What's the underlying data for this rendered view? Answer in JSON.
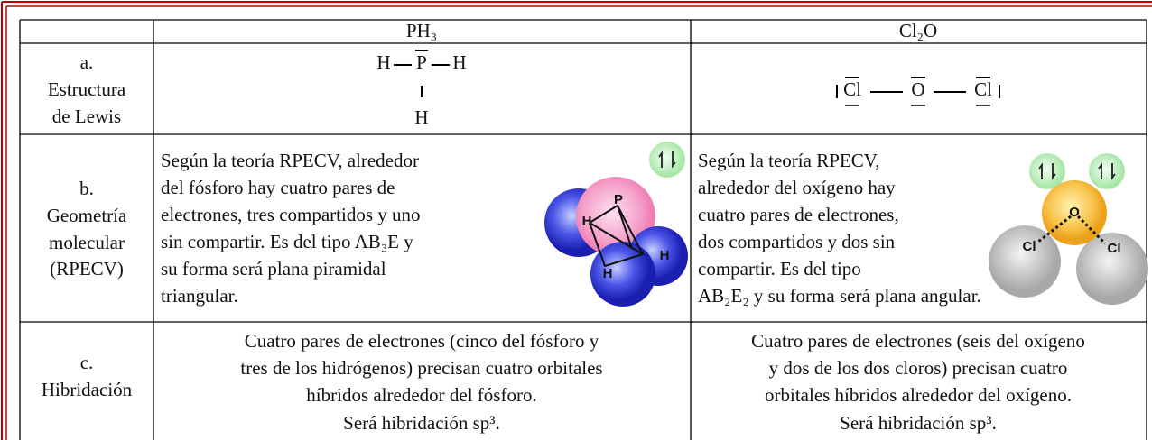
{
  "table": {
    "header": [
      "PH₃",
      "Cl₂O"
    ],
    "rows": [
      {
        "label": [
          "a.",
          "Estructura",
          "de Lewis"
        ],
        "cells": [
          {
            "atoms": [
              "H",
              "P",
              "H",
              "H"
            ]
          },
          {
            "atoms": [
              "Cl",
              "O",
              "Cl"
            ]
          }
        ]
      },
      {
        "label": [
          "b.",
          "Geometría",
          "molecular",
          "(RPECV)"
        ],
        "cells": [
          {
            "lines": [
              "Según la teoría RPECV, alrededor",
              "del fósforo  hay cuatro pares de",
              "electrones, tres compartidos y uno",
              "sin compartir. Es del tipo AB₃E y",
              "su forma será plana piramidal",
              "triangular."
            ],
            "atoms": [
              "H",
              "P",
              "H",
              "H"
            ]
          },
          {
            "lines": [
              "Según la teoría RPECV,",
              "alrededor del oxígeno  hay",
              "cuatro pares de electrones,",
              "dos compartidos y dos sin",
              "compartir. Es del tipo",
              "AB₂E₂ y su forma será plana angular."
            ],
            "atoms": [
              "O",
              "Cl",
              "Cl"
            ]
          }
        ]
      },
      {
        "label": [
          "c.",
          "Hibridación"
        ],
        "cells": [
          {
            "lines": [
              "Cuatro pares de electrones (cinco del fósforo y",
              "tres de los hidrógenos) precisan cuatro orbitales",
              "híbridos alrededor del fósforo.",
              "Será hibridación sp³."
            ]
          },
          {
            "lines": [
              "Cuatro pares de electrones (seis del oxígeno",
              "y dos de los dos cloros) precisan cuatro",
              "orbitales híbridos alrededor del oxígeno.",
              "Será hibridación sp³."
            ]
          }
        ]
      }
    ]
  }
}
